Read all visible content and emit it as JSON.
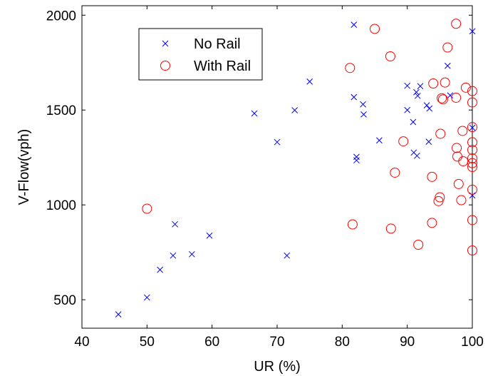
{
  "chart_data": {
    "type": "scatter",
    "title": "",
    "xlabel": "UR (%)",
    "ylabel": "V-Flow(vph)",
    "xlim": [
      40,
      100
    ],
    "ylim": [
      350,
      2050
    ],
    "xticks": [
      40,
      50,
      60,
      70,
      80,
      90,
      100
    ],
    "yticks": [
      500,
      1000,
      1500,
      2000
    ],
    "grid": false,
    "legend_position": "top-left",
    "series": [
      {
        "name": "No Rail",
        "marker": "x",
        "color": "#0000ff",
        "points": [
          [
            45.6,
            423
          ],
          [
            50.0,
            512
          ],
          [
            52.0,
            658
          ],
          [
            54.0,
            733
          ],
          [
            54.3,
            898
          ],
          [
            56.9,
            740
          ],
          [
            59.6,
            838
          ],
          [
            66.5,
            1482
          ],
          [
            70.0,
            1331
          ],
          [
            71.5,
            733
          ],
          [
            72.7,
            1499
          ],
          [
            75.0,
            1650
          ],
          [
            81.8,
            1950
          ],
          [
            81.8,
            1568
          ],
          [
            82.2,
            1253
          ],
          [
            82.2,
            1235
          ],
          [
            83.2,
            1530
          ],
          [
            83.3,
            1477
          ],
          [
            85.7,
            1340
          ],
          [
            90.0,
            1628
          ],
          [
            90.0,
            1500
          ],
          [
            90.9,
            1437
          ],
          [
            91.0,
            1276
          ],
          [
            91.4,
            1594
          ],
          [
            91.5,
            1259
          ],
          [
            91.6,
            1575
          ],
          [
            92.0,
            1626
          ],
          [
            93.0,
            1525
          ],
          [
            93.4,
            1508
          ],
          [
            93.3,
            1333
          ],
          [
            96.2,
            1733
          ],
          [
            96.6,
            1577
          ],
          [
            100.0,
            1915
          ],
          [
            100.0,
            1407
          ],
          [
            100.0,
            1050
          ]
        ]
      },
      {
        "name": "With Rail",
        "marker": "o",
        "color": "#ff0000",
        "points": [
          [
            50.0,
            980
          ],
          [
            81.2,
            1722
          ],
          [
            81.6,
            897
          ],
          [
            85.0,
            1928
          ],
          [
            87.4,
            1783
          ],
          [
            87.5,
            875
          ],
          [
            88.1,
            1170
          ],
          [
            89.4,
            1335
          ],
          [
            91.7,
            790
          ],
          [
            93.8,
            905
          ],
          [
            93.8,
            1148
          ],
          [
            94.0,
            1640
          ],
          [
            94.8,
            1020
          ],
          [
            95.0,
            1040
          ],
          [
            95.1,
            1375
          ],
          [
            95.3,
            1562
          ],
          [
            95.5,
            1556
          ],
          [
            95.8,
            1645
          ],
          [
            96.2,
            1830
          ],
          [
            97.5,
            1565
          ],
          [
            97.5,
            1955
          ],
          [
            97.6,
            1300
          ],
          [
            97.7,
            1255
          ],
          [
            97.9,
            1110
          ],
          [
            98.3,
            1025
          ],
          [
            98.5,
            1390
          ],
          [
            98.6,
            1230
          ],
          [
            99.0,
            1618
          ],
          [
            100.0,
            1600
          ],
          [
            100.0,
            1540
          ],
          [
            100.0,
            1410
          ],
          [
            100.0,
            1330
          ],
          [
            100.0,
            1290
          ],
          [
            100.0,
            1245
          ],
          [
            100.0,
            1220
          ],
          [
            100.0,
            1200
          ],
          [
            100.0,
            1080
          ],
          [
            100.0,
            920
          ],
          [
            100.0,
            760
          ]
        ]
      }
    ]
  }
}
